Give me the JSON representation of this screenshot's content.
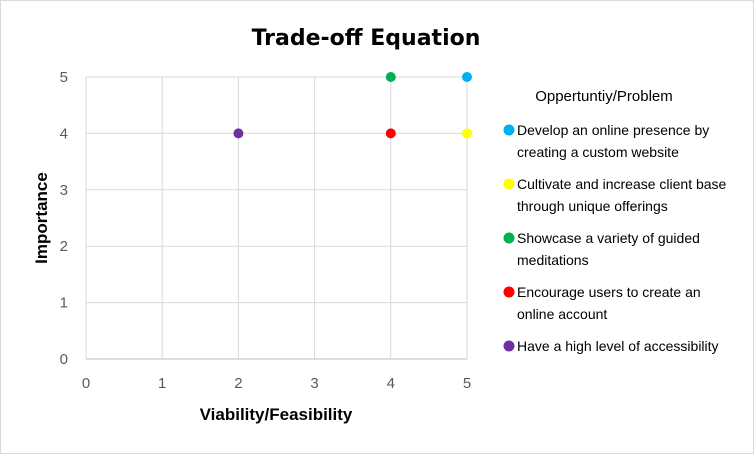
{
  "chart_data": {
    "type": "scatter",
    "title": "Trade-off Equation",
    "xlabel": "Viability/Feasibility",
    "ylabel": "Importance",
    "xlim": [
      0,
      5
    ],
    "ylim": [
      0,
      5
    ],
    "x_ticks": [
      "0",
      "1",
      "2",
      "3",
      "4",
      "5"
    ],
    "y_ticks": [
      "0",
      "1",
      "2",
      "3",
      "4",
      "5"
    ],
    "grid": true,
    "legend_title": "Oppertuntiy/Problem",
    "legend_position": "right",
    "series": [
      {
        "name": "Develop an online presence by creating a custom website",
        "label_lines": [
          "Develop an online presence by",
          "creating a custom website"
        ],
        "color": "#00b0f0",
        "x": 5,
        "y": 5
      },
      {
        "name": "Cultivate and increase client base through unique offerings",
        "label_lines": [
          "Cultivate and increase client base",
          "through unique offerings"
        ],
        "color": "#ffff00",
        "x": 5,
        "y": 4
      },
      {
        "name": "Showcase a variety of guided meditations",
        "label_lines": [
          "Showcase a variety of guided",
          "meditations"
        ],
        "color": "#00b050",
        "x": 4,
        "y": 5
      },
      {
        "name": "Encourage users to create an online account",
        "label_lines": [
          "Encourage users to create an",
          "online account"
        ],
        "color": "#ff0000",
        "x": 4,
        "y": 4
      },
      {
        "name": "Have a high level of accessibility",
        "label_lines": [
          "Have a high level of accessibility"
        ],
        "color": "#7030a0",
        "x": 2,
        "y": 4
      }
    ]
  }
}
